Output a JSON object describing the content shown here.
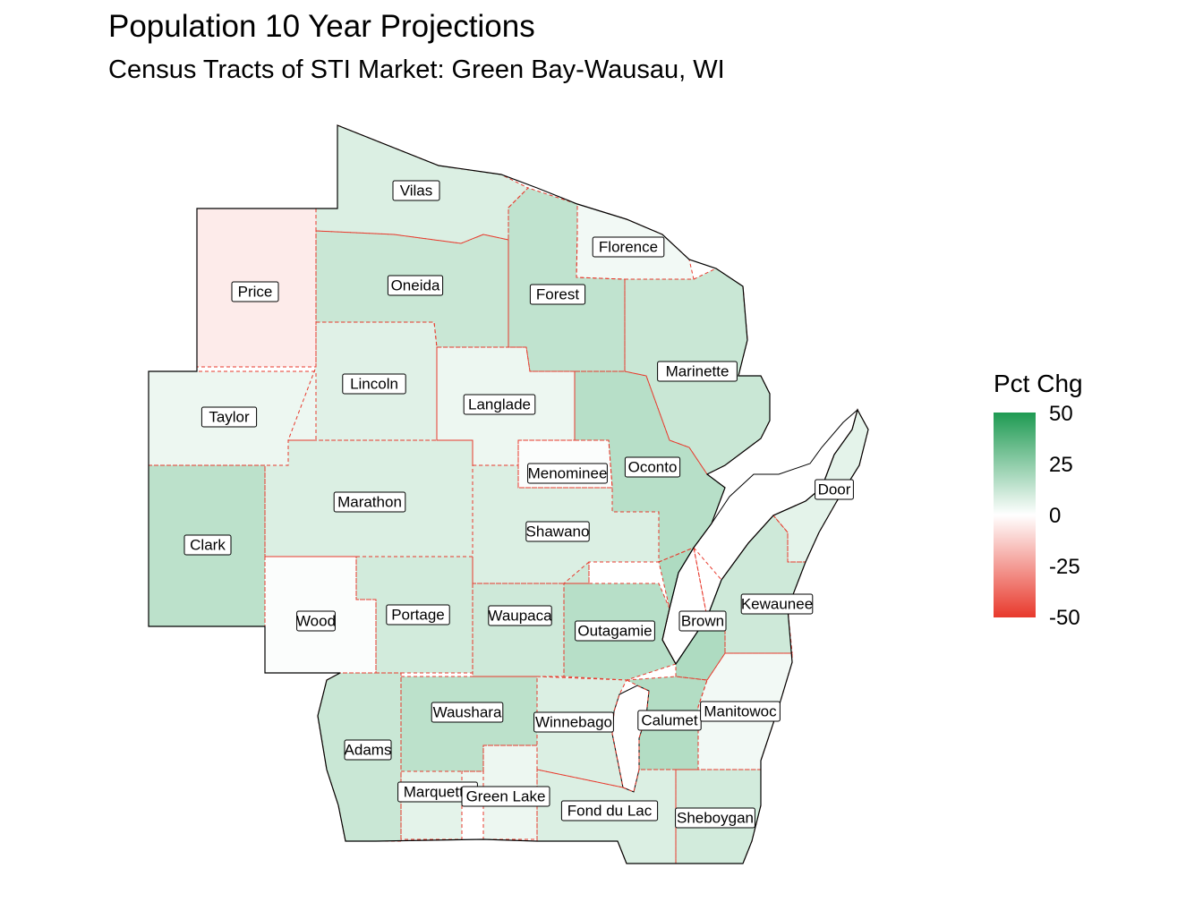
{
  "title": "Population 10 Year Projections",
  "subtitle": "Census Tracts of STI Market: Green Bay-Wausau, WI",
  "legend": {
    "title": "Pct Chg",
    "ticks": [
      "50",
      "25",
      "0",
      "-25",
      "-50"
    ],
    "colors": {
      "high": "#1e9a52",
      "mid": "#ffffff",
      "low": "#e8392c"
    },
    "range": [
      -50,
      50
    ]
  },
  "counties": [
    {
      "name": "Vilas",
      "pct": 8
    },
    {
      "name": "Florence",
      "pct": 3
    },
    {
      "name": "Price",
      "pct": -5
    },
    {
      "name": "Oneida",
      "pct": 12
    },
    {
      "name": "Forest",
      "pct": 14
    },
    {
      "name": "Marinette",
      "pct": 12
    },
    {
      "name": "Lincoln",
      "pct": 7
    },
    {
      "name": "Langlade",
      "pct": 4
    },
    {
      "name": "Taylor",
      "pct": 4
    },
    {
      "name": "Menominee",
      "pct": 1
    },
    {
      "name": "Oconto",
      "pct": 16
    },
    {
      "name": "Door",
      "pct": 6
    },
    {
      "name": "Marathon",
      "pct": 8
    },
    {
      "name": "Clark",
      "pct": 15
    },
    {
      "name": "Shawano",
      "pct": 8
    },
    {
      "name": "Kewaunee",
      "pct": 11
    },
    {
      "name": "Wood",
      "pct": 1
    },
    {
      "name": "Portage",
      "pct": 10
    },
    {
      "name": "Waupaca",
      "pct": 11
    },
    {
      "name": "Outagamie",
      "pct": 16
    },
    {
      "name": "Brown",
      "pct": 18
    },
    {
      "name": "Waushara",
      "pct": 15
    },
    {
      "name": "Winnebago",
      "pct": 8
    },
    {
      "name": "Calumet",
      "pct": 17
    },
    {
      "name": "Manitowoc",
      "pct": 3
    },
    {
      "name": "Adams",
      "pct": 12
    },
    {
      "name": "Marquette",
      "pct": 6
    },
    {
      "name": "Green Lake",
      "pct": 4
    },
    {
      "name": "Fond du Lac",
      "pct": 8
    },
    {
      "name": "Sheboygan",
      "pct": 10
    }
  ]
}
